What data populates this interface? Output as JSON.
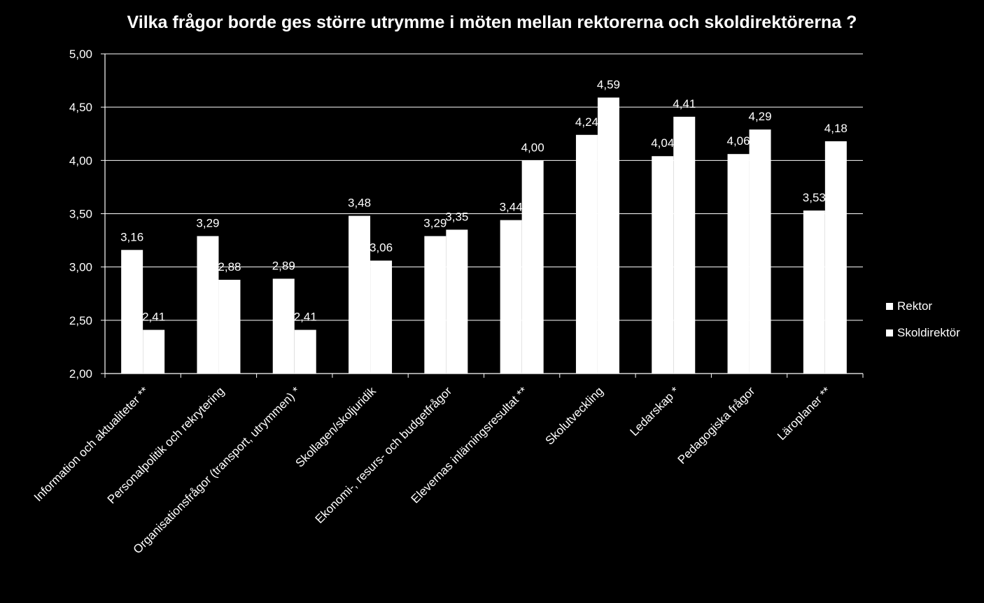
{
  "chart_data": {
    "type": "bar",
    "title": "Vilka frågor borde ges större utrymme i möten mellan rektorerna och skoldirektörerna ?",
    "categories": [
      "Information och aktualiteter **",
      "Personalpolitik och rekrytering",
      "Organisationsfrågor (transport, utrymmen) *",
      "Skollagen/skoljuridik",
      "Ekonomi-, resurs- och budgetfrågor",
      "Elevernas inlärningsresultat **",
      "Skolutveckling",
      "Ledarskap *",
      "Pedagogiska frågor",
      "Läroplaner **"
    ],
    "series": [
      {
        "name": "Rektor",
        "values": [
          3.16,
          3.29,
          2.89,
          3.48,
          3.29,
          3.44,
          4.24,
          4.04,
          4.06,
          3.53
        ],
        "labels": [
          "3,16",
          "3,29",
          "2,89",
          "3,48",
          "3,29",
          "3,44",
          "4,24",
          "4,04",
          "4,06",
          "3,53"
        ],
        "color": "#ffffff"
      },
      {
        "name": "Skoldirektör",
        "values": [
          2.41,
          2.88,
          2.41,
          3.06,
          3.35,
          4.0,
          4.59,
          4.41,
          4.29,
          4.18
        ],
        "labels": [
          "2,41",
          "2,88",
          "2,41",
          "3,06",
          "3,35",
          "4,00",
          "4,59",
          "4,41",
          "4,29",
          "4,18"
        ],
        "color": "#ffffff"
      }
    ],
    "ylim": [
      2.0,
      5.0
    ],
    "yticks": [
      "2,00",
      "2,50",
      "3,00",
      "3,50",
      "4,00",
      "4,50",
      "5,00"
    ],
    "ytick_values": [
      2.0,
      2.5,
      3.0,
      3.5,
      4.0,
      4.5,
      5.0
    ],
    "grid": true,
    "legend_position": "right",
    "background": "#000000",
    "foreground": "#ffffff"
  }
}
